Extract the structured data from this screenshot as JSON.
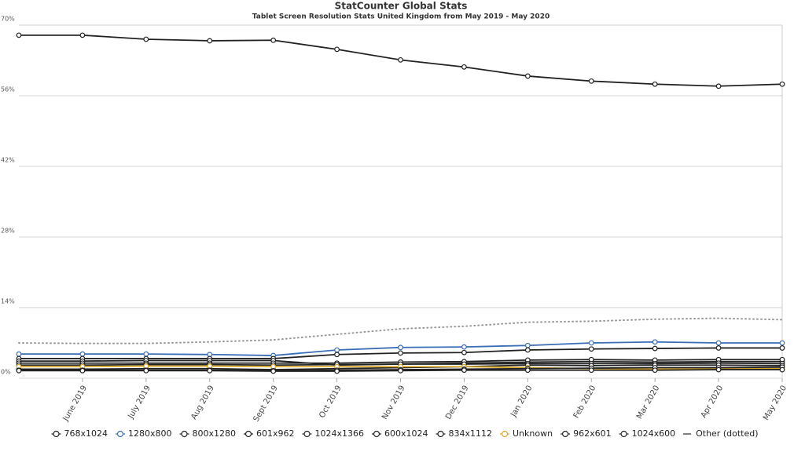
{
  "chart_data": {
    "type": "line",
    "title": "StatCounter Global Stats",
    "subtitle": "Tablet Screen Resolution Stats United Kingdom from May 2019 - May 2020",
    "categories": [
      null,
      "June 2019",
      "July 2019",
      "Aug 2019",
      "Sept 2019",
      "Oct 2019",
      "Nov 2019",
      "Dec 2019",
      "Jan 2020",
      "Feb 2020",
      "Mar 2020",
      "Apr 2020",
      "May 2020"
    ],
    "ylim": [
      0,
      70
    ],
    "yticks": [
      {
        "value": 0,
        "label": "0%"
      },
      {
        "value": 14,
        "label": "14%"
      },
      {
        "value": 28,
        "label": "28%"
      },
      {
        "value": 42,
        "label": "42%"
      },
      {
        "value": 56,
        "label": "56%"
      },
      {
        "value": 70,
        "label": "70%"
      }
    ],
    "grid": true,
    "legend": "bottom",
    "series": [
      {
        "name": "768x1024",
        "color": "#222222",
        "values": [
          68.0,
          68.0,
          67.2,
          66.9,
          67.0,
          65.2,
          63.1,
          61.7,
          59.9,
          58.9,
          58.3,
          57.9,
          58.3
        ]
      },
      {
        "name": "1280x800",
        "color": "#3a6db5",
        "values": [
          4.8,
          4.8,
          4.8,
          4.7,
          4.5,
          5.6,
          6.1,
          6.2,
          6.5,
          7.0,
          7.2,
          7.0,
          7.0
        ]
      },
      {
        "name": "800x1280",
        "color": "#222222",
        "values": [
          3.9,
          3.9,
          3.9,
          3.9,
          3.9,
          4.7,
          5.0,
          5.1,
          5.6,
          5.8,
          5.9,
          6.0,
          6.0
        ]
      },
      {
        "name": "601x962",
        "color": "#222222",
        "values": [
          3.4,
          3.4,
          3.5,
          3.5,
          3.5,
          2.6,
          2.8,
          3.0,
          3.2,
          3.3,
          3.2,
          3.3,
          3.3
        ]
      },
      {
        "name": "1024x1366",
        "color": "#222222",
        "values": [
          3.0,
          3.0,
          3.0,
          3.0,
          3.0,
          3.0,
          3.2,
          3.3,
          3.6,
          3.7,
          3.6,
          3.7,
          3.7
        ]
      },
      {
        "name": "600x1024",
        "color": "#222222",
        "values": [
          2.6,
          2.6,
          2.7,
          2.7,
          2.6,
          2.7,
          2.8,
          2.8,
          2.9,
          2.9,
          2.9,
          3.0,
          2.9
        ]
      },
      {
        "name": "834x1112",
        "color": "#222222",
        "values": [
          1.8,
          1.8,
          1.9,
          1.9,
          1.7,
          1.9,
          2.1,
          2.3,
          2.6,
          2.5,
          2.6,
          2.6,
          2.5
        ]
      },
      {
        "name": "Unknown",
        "color": "#d9a72b",
        "values": [
          2.3,
          2.3,
          2.4,
          2.4,
          2.3,
          2.3,
          2.3,
          2.3,
          2.1,
          1.9,
          1.8,
          1.9,
          1.9
        ]
      },
      {
        "name": "962x601",
        "color": "#222222",
        "values": [
          1.6,
          1.6,
          1.6,
          1.6,
          1.5,
          1.6,
          1.7,
          1.8,
          1.9,
          2.0,
          2.1,
          2.1,
          2.2
        ]
      },
      {
        "name": "1024x600",
        "color": "#222222",
        "values": [
          1.5,
          1.5,
          1.5,
          1.5,
          1.4,
          1.4,
          1.5,
          1.6,
          1.6,
          1.6,
          1.6,
          1.7,
          1.7
        ]
      },
      {
        "name": "Other (dotted)",
        "color": "#999999",
        "style": "dotted",
        "values": [
          7.0,
          6.9,
          6.9,
          7.2,
          7.6,
          8.7,
          9.8,
          10.3,
          11.1,
          11.3,
          11.7,
          11.9,
          11.6
        ]
      }
    ]
  }
}
